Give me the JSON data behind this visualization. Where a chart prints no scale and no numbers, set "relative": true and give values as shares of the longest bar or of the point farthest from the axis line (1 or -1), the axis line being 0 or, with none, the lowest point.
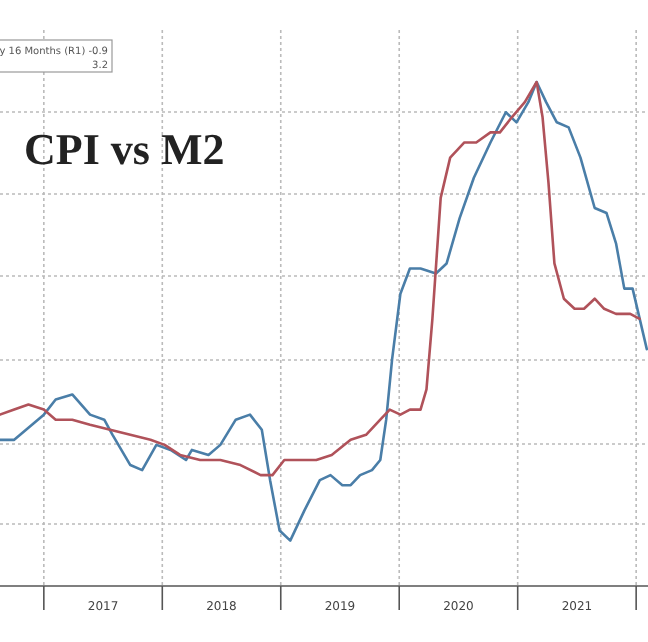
{
  "chart_data": {
    "type": "line",
    "title": "CPI vs M2",
    "relative": true,
    "grid": true,
    "xlim": [
      2016.63,
      2022.1
    ],
    "xticks": [
      {
        "value": 2017,
        "label": null
      },
      {
        "value": 2017.5,
        "label": "2017"
      },
      {
        "value": 2018,
        "label": null
      },
      {
        "value": 2018.5,
        "label": "2018"
      },
      {
        "value": 2019,
        "label": null
      },
      {
        "value": 2019.5,
        "label": "2019"
      },
      {
        "value": 2020,
        "label": null
      },
      {
        "value": 2020.5,
        "label": "2020"
      },
      {
        "value": 2021,
        "label": null
      },
      {
        "value": 2021.5,
        "label": "2021"
      },
      {
        "value": 2022,
        "label": null
      }
    ],
    "annotations": [
      "y 16 Months (R1) -0.9",
      "3.2"
    ],
    "series": [
      {
        "color": "#4a7ea8",
        "x": [
          2016.63,
          2016.75,
          2017.0,
          2017.1,
          2017.24,
          2017.39,
          2017.51,
          2017.58,
          2017.73,
          2017.83,
          2017.95,
          2018.07,
          2018.2,
          2018.25,
          2018.39,
          2018.49,
          2018.62,
          2018.74,
          2018.84,
          2018.91,
          2018.99,
          2019.08,
          2019.2,
          2019.33,
          2019.42,
          2019.52,
          2019.59,
          2019.67,
          2019.77,
          2019.84,
          2019.89,
          2019.94,
          2020.01,
          2020.09,
          2020.18,
          2020.31,
          2020.4,
          2020.51,
          2020.63,
          2020.77,
          2020.9,
          2020.99,
          2021.09,
          2021.16,
          2021.24,
          2021.33,
          2021.43,
          2021.53,
          2021.65,
          2021.75,
          2021.83,
          2021.9,
          2021.97,
          2022.03,
          2022.09
        ],
        "values": [
          0.29,
          0.29,
          0.34,
          0.37,
          0.38,
          0.34,
          0.33,
          0.3,
          0.24,
          0.23,
          0.28,
          0.27,
          0.25,
          0.27,
          0.26,
          0.28,
          0.33,
          0.34,
          0.31,
          0.21,
          0.11,
          0.09,
          0.15,
          0.21,
          0.22,
          0.2,
          0.2,
          0.22,
          0.23,
          0.25,
          0.33,
          0.45,
          0.58,
          0.63,
          0.63,
          0.62,
          0.64,
          0.73,
          0.81,
          0.88,
          0.94,
          0.92,
          0.96,
          1,
          0.96,
          0.92,
          0.91,
          0.85,
          0.75,
          0.74,
          0.68,
          0.59,
          0.59,
          0.53,
          0.47
        ]
      },
      {
        "color": "#b0525a",
        "x": [
          2016.63,
          2016.75,
          2016.87,
          2017.0,
          2017.1,
          2017.24,
          2017.39,
          2017.56,
          2017.73,
          2017.9,
          2018.02,
          2018.15,
          2018.32,
          2018.49,
          2018.66,
          2018.83,
          2018.93,
          2019.03,
          2019.13,
          2019.3,
          2019.43,
          2019.59,
          2019.72,
          2019.84,
          2019.92,
          2020.01,
          2020.09,
          2020.18,
          2020.23,
          2020.28,
          2020.35,
          2020.43,
          2020.55,
          2020.65,
          2020.77,
          2020.85,
          2020.95,
          2021.06,
          2021.16,
          2021.21,
          2021.26,
          2021.31,
          2021.39,
          2021.48,
          2021.56,
          2021.65,
          2021.73,
          2021.83,
          2021.95,
          2022.03
        ],
        "values": [
          0.34,
          0.35,
          0.36,
          0.35,
          0.33,
          0.33,
          0.32,
          0.31,
          0.3,
          0.29,
          0.28,
          0.26,
          0.25,
          0.25,
          0.24,
          0.22,
          0.22,
          0.25,
          0.25,
          0.25,
          0.26,
          0.29,
          0.3,
          0.33,
          0.35,
          0.34,
          0.35,
          0.35,
          0.39,
          0.53,
          0.77,
          0.85,
          0.88,
          0.88,
          0.9,
          0.9,
          0.93,
          0.96,
          1,
          0.93,
          0.8,
          0.64,
          0.57,
          0.55,
          0.55,
          0.57,
          0.55,
          0.54,
          0.54,
          0.53
        ]
      }
    ]
  }
}
